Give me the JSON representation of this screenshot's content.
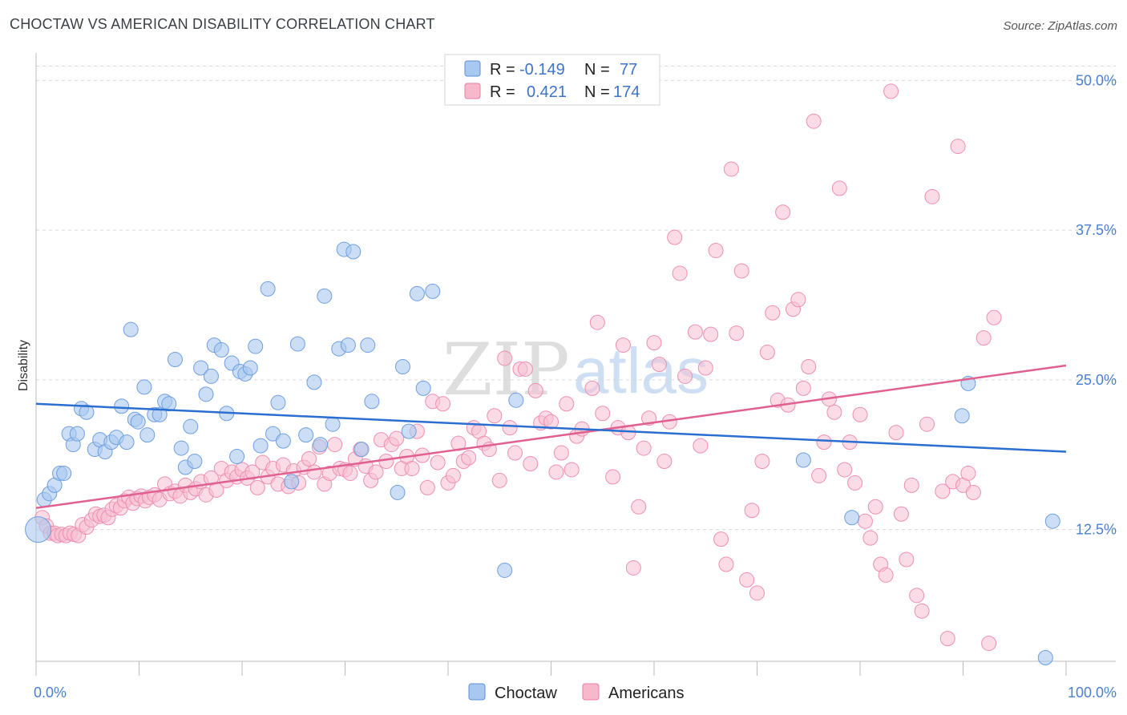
{
  "header": {
    "title": "CHOCTAW VS AMERICAN DISABILITY CORRELATION CHART",
    "source": "Source: ZipAtlas.com"
  },
  "watermark": {
    "zip": "ZIP",
    "atlas": "atlas"
  },
  "legend": {
    "r_label": "R =",
    "n_label": "N =",
    "rows": [
      {
        "series": "Choctaw",
        "r": "-0.149",
        "n": "77",
        "color": "#a8c8f0",
        "stroke": "#5a8fd6"
      },
      {
        "series": "Americans",
        "r": "0.421",
        "n": "174",
        "color": "#f8b8cc",
        "stroke": "#e87ba0"
      }
    ]
  },
  "bottom_legend": [
    {
      "label": "Choctaw",
      "color": "#a8c8f0"
    },
    {
      "label": "Americans",
      "color": "#f8b8cc"
    }
  ],
  "colors": {
    "choctaw_fill": "#a8c8f0",
    "choctaw_stroke": "#6f9fe0",
    "choctaw_line": "#2a6fd0",
    "americans_fill": "#f8c0d2",
    "americans_stroke": "#ee8fb0",
    "americans_line": "#e0608f",
    "grid": "#d8d8d8",
    "tick_label": "#4a7fd0"
  },
  "chart_data": {
    "type": "scatter",
    "title": "CHOCTAW VS AMERICAN DISABILITY CORRELATION CHART",
    "xlabel": "",
    "ylabel": "Disability",
    "xlim": [
      0,
      100
    ],
    "ylim": [
      1.5,
      51.5
    ],
    "x_tick_labels": [
      "0.0%",
      "100.0%"
    ],
    "y_ticks": [
      12.5,
      25.0,
      37.5,
      50.0
    ],
    "y_tick_labels": [
      "12.5%",
      "25.0%",
      "37.5%",
      "50.0%"
    ],
    "grid": "horizontal dashed",
    "legend_position": "top-center",
    "series": [
      {
        "name": "Choctaw",
        "r": -0.149,
        "n": 77,
        "trend": [
          [
            0,
            23.0
          ],
          [
            100,
            19.0
          ]
        ],
        "points": [
          [
            0.2,
            12.5
          ],
          [
            0.8,
            15.0
          ],
          [
            1.3,
            15.5
          ],
          [
            1.8,
            16.2
          ],
          [
            2.3,
            17.2
          ],
          [
            2.7,
            17.2
          ],
          [
            3.2,
            20.5
          ],
          [
            3.6,
            19.6
          ],
          [
            4.0,
            20.5
          ],
          [
            4.4,
            22.6
          ],
          [
            4.9,
            22.3
          ],
          [
            5.7,
            19.2
          ],
          [
            6.2,
            20.0
          ],
          [
            6.7,
            19.0
          ],
          [
            7.3,
            19.8
          ],
          [
            7.8,
            20.2
          ],
          [
            8.3,
            22.8
          ],
          [
            8.8,
            19.8
          ],
          [
            9.2,
            29.2
          ],
          [
            9.6,
            21.7
          ],
          [
            9.9,
            21.5
          ],
          [
            10.5,
            24.4
          ],
          [
            10.8,
            20.4
          ],
          [
            11.5,
            22.1
          ],
          [
            12.0,
            22.1
          ],
          [
            12.5,
            23.2
          ],
          [
            12.9,
            23.0
          ],
          [
            13.5,
            26.7
          ],
          [
            14.1,
            19.3
          ],
          [
            14.5,
            17.7
          ],
          [
            15.0,
            21.1
          ],
          [
            15.4,
            18.2
          ],
          [
            16.0,
            26.0
          ],
          [
            16.5,
            23.8
          ],
          [
            17.0,
            25.3
          ],
          [
            17.3,
            27.9
          ],
          [
            18.0,
            27.5
          ],
          [
            18.5,
            22.2
          ],
          [
            19.0,
            26.4
          ],
          [
            19.5,
            18.6
          ],
          [
            19.8,
            25.7
          ],
          [
            20.3,
            25.5
          ],
          [
            20.8,
            26.0
          ],
          [
            21.3,
            27.8
          ],
          [
            21.8,
            19.5
          ],
          [
            22.5,
            32.6
          ],
          [
            23.0,
            20.5
          ],
          [
            23.5,
            23.1
          ],
          [
            24.0,
            19.9
          ],
          [
            24.8,
            16.5
          ],
          [
            25.4,
            28.0
          ],
          [
            26.2,
            20.4
          ],
          [
            27.0,
            24.8
          ],
          [
            27.6,
            19.6
          ],
          [
            28.0,
            32.0
          ],
          [
            28.8,
            21.3
          ],
          [
            29.4,
            27.6
          ],
          [
            29.9,
            35.9
          ],
          [
            30.3,
            27.9
          ],
          [
            30.8,
            35.7
          ],
          [
            31.6,
            19.2
          ],
          [
            32.2,
            27.9
          ],
          [
            32.6,
            23.2
          ],
          [
            35.1,
            15.6
          ],
          [
            35.6,
            26.1
          ],
          [
            36.2,
            20.7
          ],
          [
            37.0,
            32.2
          ],
          [
            37.6,
            24.3
          ],
          [
            38.5,
            32.4
          ],
          [
            45.5,
            9.1
          ],
          [
            46.6,
            23.3
          ],
          [
            74.5,
            18.3
          ],
          [
            79.2,
            13.5
          ],
          [
            89.9,
            22.0
          ],
          [
            90.5,
            24.7
          ],
          [
            98.0,
            1.8
          ],
          [
            98.7,
            13.2
          ]
        ]
      },
      {
        "name": "Americans",
        "r": 0.421,
        "n": 174,
        "trend": [
          [
            0,
            14.3
          ],
          [
            100,
            26.2
          ]
        ],
        "points": [
          [
            0.6,
            13.5
          ],
          [
            1.0,
            12.8
          ],
          [
            1.4,
            12.2
          ],
          [
            1.8,
            12.2
          ],
          [
            2.1,
            12.0
          ],
          [
            2.5,
            12.1
          ],
          [
            2.9,
            12.0
          ],
          [
            3.3,
            12.2
          ],
          [
            3.7,
            12.1
          ],
          [
            4.1,
            12.0
          ],
          [
            4.5,
            12.9
          ],
          [
            4.9,
            12.7
          ],
          [
            5.4,
            13.3
          ],
          [
            5.8,
            13.8
          ],
          [
            6.2,
            13.6
          ],
          [
            6.6,
            13.7
          ],
          [
            7.0,
            13.5
          ],
          [
            7.4,
            14.2
          ],
          [
            7.8,
            14.5
          ],
          [
            8.2,
            14.3
          ],
          [
            8.6,
            14.9
          ],
          [
            9.0,
            15.2
          ],
          [
            9.4,
            14.7
          ],
          [
            9.8,
            15.1
          ],
          [
            10.2,
            15.3
          ],
          [
            10.6,
            14.9
          ],
          [
            11.0,
            15.2
          ],
          [
            11.5,
            15.4
          ],
          [
            12.0,
            15.0
          ],
          [
            12.5,
            16.3
          ],
          [
            13.0,
            15.5
          ],
          [
            13.5,
            15.7
          ],
          [
            14.0,
            15.3
          ],
          [
            14.5,
            16.2
          ],
          [
            15.0,
            15.6
          ],
          [
            15.5,
            15.9
          ],
          [
            16.0,
            16.5
          ],
          [
            16.5,
            15.4
          ],
          [
            17.0,
            16.8
          ],
          [
            17.5,
            15.8
          ],
          [
            18.0,
            17.6
          ],
          [
            18.5,
            16.6
          ],
          [
            19.0,
            17.3
          ],
          [
            19.5,
            16.9
          ],
          [
            20.0,
            17.5
          ],
          [
            20.5,
            16.8
          ],
          [
            21.0,
            17.3
          ],
          [
            21.5,
            16.0
          ],
          [
            22.0,
            18.1
          ],
          [
            22.5,
            16.9
          ],
          [
            23.0,
            17.6
          ],
          [
            23.5,
            16.3
          ],
          [
            24.0,
            17.9
          ],
          [
            24.5,
            16.1
          ],
          [
            25.0,
            17.4
          ],
          [
            25.5,
            16.4
          ],
          [
            26.0,
            17.7
          ],
          [
            26.5,
            18.4
          ],
          [
            27.0,
            17.3
          ],
          [
            27.5,
            19.4
          ],
          [
            28.0,
            16.3
          ],
          [
            28.5,
            17.2
          ],
          [
            29.0,
            19.6
          ],
          [
            29.5,
            17.6
          ],
          [
            30.0,
            17.5
          ],
          [
            30.5,
            17.2
          ],
          [
            31.0,
            18.4
          ],
          [
            31.5,
            19.2
          ],
          [
            32.0,
            17.8
          ],
          [
            32.5,
            16.6
          ],
          [
            33.0,
            17.3
          ],
          [
            33.5,
            20.0
          ],
          [
            34.0,
            18.2
          ],
          [
            34.5,
            19.6
          ],
          [
            35.0,
            20.1
          ],
          [
            35.5,
            17.6
          ],
          [
            36.0,
            18.6
          ],
          [
            36.5,
            17.6
          ],
          [
            37.0,
            20.7
          ],
          [
            37.5,
            18.7
          ],
          [
            38.0,
            16.0
          ],
          [
            38.5,
            23.2
          ],
          [
            39.0,
            18.1
          ],
          [
            39.5,
            23.0
          ],
          [
            40.0,
            16.4
          ],
          [
            40.5,
            17.0
          ],
          [
            41.0,
            19.7
          ],
          [
            41.5,
            18.2
          ],
          [
            42.0,
            18.5
          ],
          [
            42.5,
            21.0
          ],
          [
            43.0,
            20.7
          ],
          [
            43.5,
            19.7
          ],
          [
            44.0,
            19.2
          ],
          [
            44.5,
            22.0
          ],
          [
            45.0,
            16.6
          ],
          [
            45.5,
            26.8
          ],
          [
            46.0,
            21.0
          ],
          [
            46.5,
            18.9
          ],
          [
            47.0,
            25.9
          ],
          [
            47.5,
            25.9
          ],
          [
            48.0,
            18.0
          ],
          [
            48.5,
            24.1
          ],
          [
            49.0,
            21.4
          ],
          [
            49.5,
            21.8
          ],
          [
            50.0,
            21.5
          ],
          [
            50.5,
            17.3
          ],
          [
            51.0,
            18.9
          ],
          [
            51.5,
            23.0
          ],
          [
            52.0,
            17.5
          ],
          [
            52.5,
            20.3
          ],
          [
            53.0,
            20.9
          ],
          [
            54.0,
            24.3
          ],
          [
            54.5,
            29.8
          ],
          [
            55.0,
            22.2
          ],
          [
            56.0,
            16.9
          ],
          [
            56.5,
            21.0
          ],
          [
            57.0,
            27.9
          ],
          [
            57.5,
            20.6
          ],
          [
            58.0,
            9.3
          ],
          [
            58.5,
            14.4
          ],
          [
            59.0,
            19.3
          ],
          [
            59.5,
            21.8
          ],
          [
            60.0,
            28.1
          ],
          [
            60.5,
            26.3
          ],
          [
            61.0,
            18.2
          ],
          [
            61.5,
            21.5
          ],
          [
            62.0,
            36.9
          ],
          [
            62.5,
            33.9
          ],
          [
            63.0,
            25.3
          ],
          [
            64.0,
            29.0
          ],
          [
            64.5,
            19.5
          ],
          [
            65.0,
            26.0
          ],
          [
            65.5,
            28.8
          ],
          [
            66.0,
            35.8
          ],
          [
            66.5,
            11.7
          ],
          [
            67.0,
            9.6
          ],
          [
            67.5,
            42.6
          ],
          [
            68.0,
            28.9
          ],
          [
            68.5,
            34.1
          ],
          [
            69.0,
            8.3
          ],
          [
            69.5,
            14.1
          ],
          [
            70.0,
            7.2
          ],
          [
            70.5,
            18.2
          ],
          [
            71.0,
            27.3
          ],
          [
            71.5,
            30.6
          ],
          [
            72.0,
            23.3
          ],
          [
            72.5,
            39.0
          ],
          [
            73.0,
            22.9
          ],
          [
            73.5,
            30.9
          ],
          [
            74.0,
            31.7
          ],
          [
            74.5,
            24.3
          ],
          [
            75.0,
            26.1
          ],
          [
            75.5,
            46.6
          ],
          [
            76.0,
            17.0
          ],
          [
            76.5,
            19.8
          ],
          [
            77.0,
            23.4
          ],
          [
            77.5,
            22.3
          ],
          [
            78.0,
            41.0
          ],
          [
            78.5,
            17.5
          ],
          [
            79.0,
            19.8
          ],
          [
            79.5,
            16.4
          ],
          [
            80.0,
            22.1
          ],
          [
            80.5,
            13.2
          ],
          [
            81.0,
            11.8
          ],
          [
            81.5,
            14.4
          ],
          [
            82.0,
            9.6
          ],
          [
            82.5,
            8.7
          ],
          [
            83.0,
            49.1
          ],
          [
            83.5,
            20.6
          ],
          [
            84.0,
            13.8
          ],
          [
            84.5,
            10.0
          ],
          [
            85.0,
            16.2
          ],
          [
            85.5,
            7.0
          ],
          [
            86.0,
            5.7
          ],
          [
            86.5,
            21.3
          ],
          [
            87.0,
            40.3
          ],
          [
            88.0,
            15.7
          ],
          [
            88.5,
            3.4
          ],
          [
            89.0,
            16.5
          ],
          [
            89.5,
            44.5
          ],
          [
            90.0,
            16.2
          ],
          [
            90.5,
            17.2
          ],
          [
            91.0,
            15.6
          ],
          [
            92.0,
            28.5
          ],
          [
            92.5,
            3.0
          ],
          [
            93.0,
            30.2
          ]
        ]
      }
    ]
  }
}
